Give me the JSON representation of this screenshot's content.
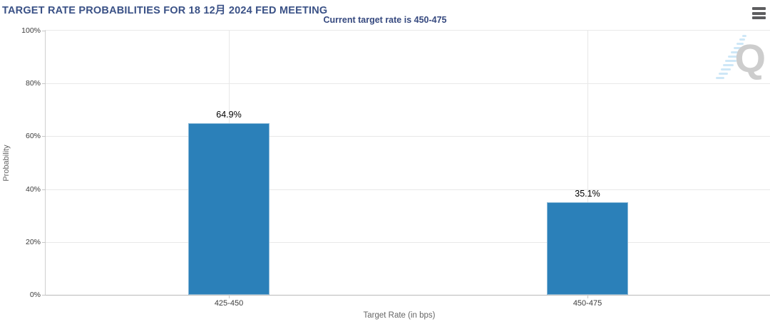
{
  "header": {
    "menu_icon": "hamburger-menu"
  },
  "chart_data": {
    "type": "bar",
    "title": "TARGET RATE PROBABILITIES FOR 18 12月 2024 FED MEETING",
    "subtitle": "Current target rate is 450-475",
    "categories": [
      "425-450",
      "450-475"
    ],
    "values": [
      64.9,
      35.1
    ],
    "value_labels": [
      "64.9%",
      "35.1%"
    ],
    "xlabel": "Target Rate (in bps)",
    "ylabel": "Probability",
    "ylim": [
      0,
      100
    ],
    "ytick_labels_top_to_bottom": [
      "100%",
      "80%",
      "60%",
      "40%",
      "20%",
      "0%"
    ],
    "grid": true,
    "legend_position": "none",
    "bar_color": "#2b80b9"
  },
  "watermark": {
    "letter": "Q"
  },
  "colors": {
    "title": "#3a5186",
    "subtitle": "#36497f",
    "bar": "#2b80b9",
    "axis_text": "#3c3c3c",
    "muted_text": "#666666"
  }
}
